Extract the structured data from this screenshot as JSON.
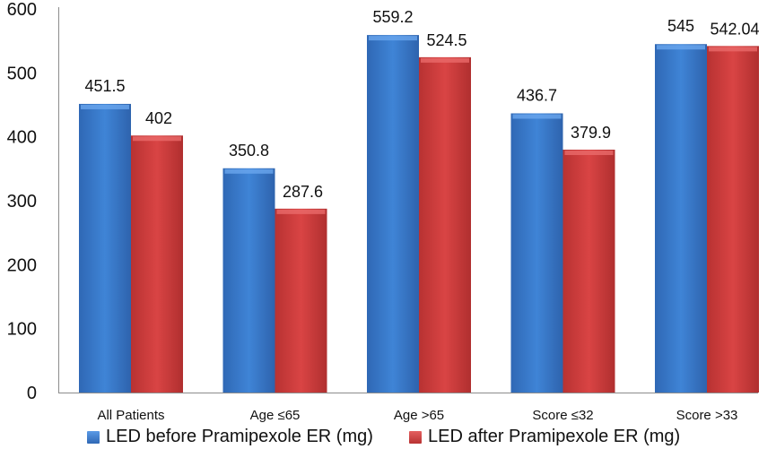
{
  "chart_data": {
    "type": "bar",
    "title": "",
    "xlabel": "",
    "ylabel": "",
    "ylim": [
      0,
      600
    ],
    "yticks": [
      0,
      100,
      200,
      300,
      400,
      500,
      600
    ],
    "grid": false,
    "legend_position": "bottom",
    "categories": [
      "All Patients",
      "Age ≤65",
      "Age >65",
      "Score ≤32",
      "Score >33"
    ],
    "series": [
      {
        "name": "LED before Pramipexole ER (mg)",
        "color": "#3a7ccf",
        "values": [
          451.5,
          350.8,
          559.2,
          436.7,
          545
        ],
        "labels": [
          "451.5",
          "350.8",
          "559.2",
          "436.7",
          "545"
        ]
      },
      {
        "name": "LED after Pramipexole ER (mg)",
        "color": "#d63f3f",
        "values": [
          402,
          287.6,
          524.5,
          379.9,
          542.04
        ],
        "labels": [
          "402",
          "287.6",
          "524.5",
          "379.9",
          "542.04"
        ]
      }
    ]
  }
}
